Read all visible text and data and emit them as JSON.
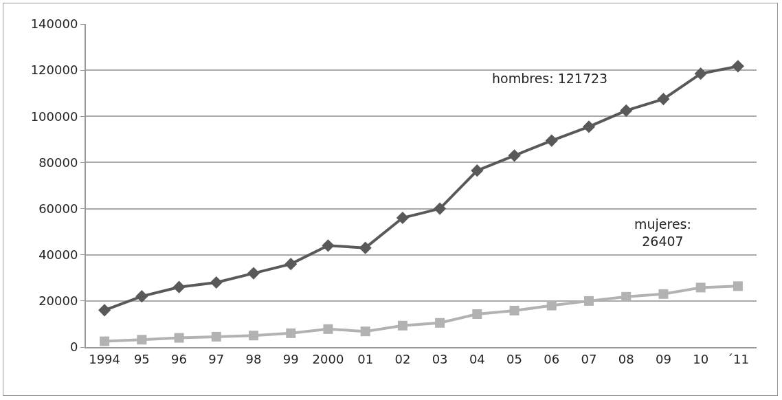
{
  "chart_data": {
    "type": "line",
    "categories": [
      "1994",
      "95",
      "96",
      "97",
      "98",
      "99",
      "2000",
      "01",
      "02",
      "03",
      "04",
      "05",
      "06",
      "07",
      "08",
      "09",
      "10",
      "´11"
    ],
    "series": [
      {
        "color": "#595959",
        "marker": "diamond",
        "values": [
          16000,
          22000,
          26000,
          28000,
          32000,
          36000,
          44000,
          43000,
          56000,
          60000,
          76500,
          83000,
          89500,
          95500,
          102500,
          107500,
          118500,
          121723
        ]
      },
      {
        "color": "#b2b2b2",
        "marker": "square",
        "values": [
          2500,
          3200,
          4000,
          4500,
          5000,
          6000,
          7800,
          6800,
          9300,
          10500,
          14300,
          15800,
          18000,
          20000,
          21800,
          23000,
          25800,
          26407
        ]
      }
    ],
    "ylim": [
      0,
      140000
    ],
    "yticks": [
      0,
      20000,
      40000,
      60000,
      80000,
      100000,
      120000,
      140000
    ],
    "grid": "y",
    "line_style": "solid",
    "annotations": [
      "hombres: 121723",
      "mujeres:\n26407"
    ]
  }
}
